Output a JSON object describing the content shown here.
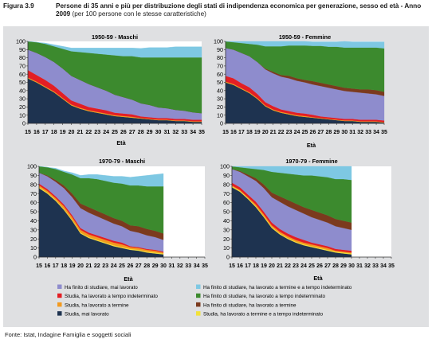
{
  "figure": {
    "label": "Figura 3.9",
    "title_bold": "Persone di 35 anni e più per distribuzione degli stati di indipendenza economica per generazione, sesso ed età - Anno 2009",
    "title_normal": "(per 100 persone con le stesse caratteristiche)",
    "source": "Fonte: Istat, Indagine Famiglia e soggetti sociali"
  },
  "colors": {
    "panel_bg": "#dfe0e2",
    "plot_bg": "#ffffff"
  },
  "states": [
    {
      "key": "mai",
      "name": "Studia, mai lavorato",
      "color": "#1e3350"
    },
    {
      "key": "term_indet",
      "name": "Studia, ha lavorato a termine e a tempo indeterminato",
      "color": "#f2e23a"
    },
    {
      "key": "term",
      "name": "Studia, ha lavorato a termine",
      "color": "#f39a1f"
    },
    {
      "key": "indet",
      "name": "Studia, ha lavorato a tempo indeterminato",
      "color": "#e31e24"
    },
    {
      "key": "fin_mai",
      "name": "Ha finito di studiare, mai lavorato",
      "color": "#8e8ccd"
    },
    {
      "key": "fin_term",
      "name": "Ha finito di studiare, ha lavorato a termine",
      "color": "#7b3a1e"
    },
    {
      "key": "fin_indet",
      "name": "Ha finito di studiare, ha lavorato a tempo indeterminato",
      "color": "#3c8a2e"
    },
    {
      "key": "fin_both",
      "name": "Ha finito di studiare, ha lavorato a termine e a tempo indeterminato",
      "color": "#7ec8e3"
    }
  ],
  "legend_left": [
    "fin_mai",
    "indet",
    "term",
    "mai"
  ],
  "legend_right": [
    "fin_both",
    "fin_indet",
    "fin_term",
    "term_indet"
  ],
  "chart_data": [
    {
      "type": "area",
      "stacked": true,
      "title": "1950-59 - Maschi",
      "xlabel": "Età",
      "x": [
        15,
        16,
        17,
        18,
        19,
        20,
        21,
        22,
        23,
        24,
        25,
        26,
        27,
        28,
        29,
        30,
        31,
        32,
        33,
        34,
        35
      ],
      "ylim": [
        0,
        100
      ],
      "yticks": [
        0,
        10,
        20,
        30,
        40,
        50,
        60,
        70,
        80,
        90,
        100
      ],
      "series": [
        {
          "key": "mai",
          "values": [
            55,
            50,
            44,
            38,
            30,
            22,
            18,
            15,
            13,
            11,
            9,
            8,
            7,
            6,
            5,
            4,
            4,
            3,
            3,
            2,
            2
          ]
        },
        {
          "key": "term_indet",
          "values": [
            0,
            0,
            0,
            0,
            0,
            0,
            0,
            0,
            0,
            0,
            0,
            0,
            0,
            0,
            0,
            0,
            0,
            0,
            0,
            0,
            0
          ]
        },
        {
          "key": "term",
          "values": [
            1,
            1,
            1,
            1,
            1,
            1,
            1,
            1,
            1,
            1,
            1,
            1,
            1,
            0.5,
            0.5,
            0.5,
            0.5,
            0.5,
            0.5,
            0.5,
            0.5
          ]
        },
        {
          "key": "indet",
          "values": [
            9,
            8,
            8,
            7,
            6,
            5,
            5,
            4,
            4,
            4,
            3,
            3,
            3,
            2,
            2,
            2,
            2,
            2,
            2,
            2,
            2
          ]
        },
        {
          "key": "fin_mai",
          "values": [
            25,
            27,
            28,
            29,
            30,
            30,
            29,
            28,
            26,
            24,
            22,
            20,
            18,
            16,
            15,
            13,
            12,
            11,
            10,
            9,
            8
          ]
        },
        {
          "key": "fin_term",
          "values": [
            0,
            0,
            0,
            0,
            0,
            0,
            0,
            0,
            0,
            0,
            0,
            0,
            0,
            0,
            0,
            0,
            0,
            0,
            0,
            0,
            0
          ]
        },
        {
          "key": "fin_indet",
          "values": [
            10,
            13,
            16,
            19,
            24,
            30,
            34,
            38,
            41,
            44,
            48,
            50,
            53,
            56,
            58,
            61,
            62,
            64,
            65,
            67,
            68
          ]
        },
        {
          "key": "fin_both",
          "values": [
            0,
            0,
            1,
            2,
            3,
            4,
            5,
            6,
            7,
            8,
            9,
            10,
            10,
            11,
            12,
            12,
            12,
            13,
            13,
            13,
            13
          ]
        }
      ]
    },
    {
      "type": "area",
      "stacked": true,
      "title": "1950-59 - Femmine",
      "xlabel": "Età",
      "x": [
        15,
        16,
        17,
        18,
        19,
        20,
        21,
        22,
        23,
        24,
        25,
        26,
        27,
        28,
        29,
        30,
        31,
        32,
        33,
        34,
        35
      ],
      "ylim": [
        0,
        100
      ],
      "yticks": [
        0,
        10,
        20,
        30,
        40,
        50,
        60,
        70,
        80,
        90,
        100
      ],
      "series": [
        {
          "key": "mai",
          "values": [
            50,
            47,
            42,
            37,
            30,
            21,
            16,
            13,
            11,
            9,
            8,
            7,
            6,
            5,
            4,
            3,
            3,
            2,
            2,
            2,
            1
          ]
        },
        {
          "key": "term_indet",
          "values": [
            0,
            0,
            0,
            0,
            0,
            0,
            0,
            0,
            0,
            0,
            0,
            0,
            0,
            0,
            0,
            0,
            0,
            0,
            0,
            0,
            0
          ]
        },
        {
          "key": "term",
          "values": [
            1,
            1,
            1,
            1,
            1,
            1,
            1,
            1,
            1,
            1,
            1,
            0.5,
            0.5,
            0.5,
            0.5,
            0.5,
            0.5,
            0.5,
            0.5,
            0.5,
            0.5
          ]
        },
        {
          "key": "indet",
          "values": [
            7,
            7,
            6,
            6,
            5,
            4,
            4,
            3,
            3,
            3,
            3,
            3,
            2,
            2,
            2,
            2,
            2,
            2,
            2,
            2,
            2
          ]
        },
        {
          "key": "fin_mai",
          "values": [
            34,
            35,
            37,
            38,
            39,
            40,
            40,
            40,
            40,
            39,
            38,
            37,
            37,
            36,
            35,
            34,
            33,
            33,
            32,
            31,
            30
          ]
        },
        {
          "key": "fin_term",
          "values": [
            0,
            0,
            0,
            0,
            0,
            1,
            2,
            2,
            3,
            3,
            3,
            4,
            4,
            4,
            4,
            4,
            4,
            4,
            5,
            5,
            5
          ]
        },
        {
          "key": "fin_indet",
          "values": [
            8,
            9,
            12,
            15,
            21,
            27,
            31,
            35,
            37,
            40,
            42,
            43,
            45,
            46,
            48,
            49,
            50,
            51,
            51,
            52,
            53
          ]
        },
        {
          "key": "fin_both",
          "values": [
            0,
            1,
            2,
            3,
            4,
            6,
            6,
            6,
            6,
            6,
            5,
            5,
            5,
            6,
            6,
            8,
            7,
            7,
            7,
            7,
            8
          ]
        }
      ]
    },
    {
      "type": "area",
      "stacked": true,
      "title": "1970-79 - Maschi",
      "xlabel": "Età",
      "x": [
        15,
        16,
        17,
        18,
        19,
        20,
        21,
        22,
        23,
        24,
        25,
        26,
        27,
        28,
        29,
        30
      ],
      "xticks": [
        15,
        16,
        17,
        18,
        19,
        20,
        21,
        22,
        23,
        24,
        25,
        26,
        27,
        28,
        29,
        30,
        31,
        32,
        33,
        34,
        35
      ],
      "ylim": [
        0,
        100
      ],
      "yticks": [
        0,
        10,
        20,
        30,
        40,
        50,
        60,
        70,
        80,
        90,
        100
      ],
      "series": [
        {
          "key": "mai",
          "values": [
            76,
            70,
            62,
            52,
            40,
            26,
            21,
            18,
            15,
            12,
            10,
            8,
            7,
            5,
            4,
            3
          ]
        },
        {
          "key": "term_indet",
          "values": [
            1,
            1,
            1,
            1,
            1,
            1,
            1,
            1,
            1,
            1,
            1,
            1,
            1,
            1,
            1,
            1
          ]
        },
        {
          "key": "term",
          "values": [
            2,
            2,
            2,
            3,
            3,
            3,
            3,
            3,
            3,
            3,
            3,
            2,
            2,
            2,
            2,
            1
          ]
        },
        {
          "key": "indet",
          "values": [
            2,
            2,
            2,
            2,
            2,
            2,
            2,
            2,
            2,
            2,
            2,
            1,
            1,
            1,
            1,
            1
          ]
        },
        {
          "key": "fin_mai",
          "values": [
            12,
            14,
            16,
            18,
            20,
            22,
            22,
            21,
            20,
            19,
            18,
            17,
            16,
            15,
            14,
            13
          ]
        },
        {
          "key": "fin_term",
          "values": [
            0,
            1,
            2,
            3,
            4,
            5,
            6,
            6,
            6,
            6,
            6,
            6,
            7,
            7,
            7,
            7
          ]
        },
        {
          "key": "fin_indet",
          "values": [
            7,
            9,
            12,
            15,
            21,
            28,
            32,
            35,
            37,
            39,
            41,
            44,
            45,
            47,
            49,
            52
          ]
        },
        {
          "key": "fin_both",
          "values": [
            0,
            0,
            1,
            1,
            2,
            3,
            4,
            5,
            6,
            7,
            8,
            9,
            10,
            12,
            13,
            14
          ]
        }
      ]
    },
    {
      "type": "area",
      "stacked": true,
      "title": "1970-79 - Femmine",
      "xlabel": "Età",
      "x": [
        15,
        16,
        17,
        18,
        19,
        20,
        21,
        22,
        23,
        24,
        25,
        26,
        27,
        28,
        29,
        30
      ],
      "xticks": [
        15,
        16,
        17,
        18,
        19,
        20,
        21,
        22,
        23,
        24,
        25,
        26,
        27,
        28,
        29,
        30,
        31,
        32,
        33,
        34,
        35
      ],
      "ylim": [
        0,
        100
      ],
      "yticks": [
        0,
        10,
        20,
        30,
        40,
        50,
        60,
        70,
        80,
        90,
        100
      ],
      "series": [
        {
          "key": "mai",
          "values": [
            77,
            72,
            64,
            55,
            44,
            32,
            25,
            20,
            16,
            13,
            11,
            9,
            7,
            5,
            4,
            3
          ]
        },
        {
          "key": "term_indet",
          "values": [
            1,
            1,
            1,
            1,
            1,
            1,
            1,
            1,
            1,
            1,
            1,
            1,
            1,
            1,
            1,
            1
          ]
        },
        {
          "key": "term",
          "values": [
            1,
            1,
            1,
            2,
            2,
            2,
            2,
            2,
            2,
            2,
            2,
            2,
            2,
            1,
            1,
            1
          ]
        },
        {
          "key": "indet",
          "values": [
            3,
            3,
            3,
            3,
            3,
            3,
            3,
            3,
            3,
            3,
            2,
            2,
            2,
            2,
            2,
            2
          ]
        },
        {
          "key": "fin_mai",
          "values": [
            15,
            17,
            20,
            23,
            26,
            28,
            30,
            30,
            30,
            29,
            28,
            27,
            26,
            25,
            24,
            23
          ]
        },
        {
          "key": "fin_term",
          "values": [
            0,
            1,
            2,
            3,
            4,
            5,
            6,
            7,
            7,
            7,
            8,
            8,
            8,
            8,
            8,
            8
          ]
        },
        {
          "key": "fin_indet",
          "values": [
            3,
            4,
            7,
            10,
            16,
            23,
            26,
            29,
            32,
            35,
            38,
            40,
            42,
            44,
            46,
            47
          ]
        },
        {
          "key": "fin_both",
          "values": [
            0,
            1,
            2,
            3,
            4,
            6,
            7,
            8,
            9,
            10,
            10,
            11,
            12,
            14,
            14,
            15
          ]
        }
      ]
    }
  ]
}
